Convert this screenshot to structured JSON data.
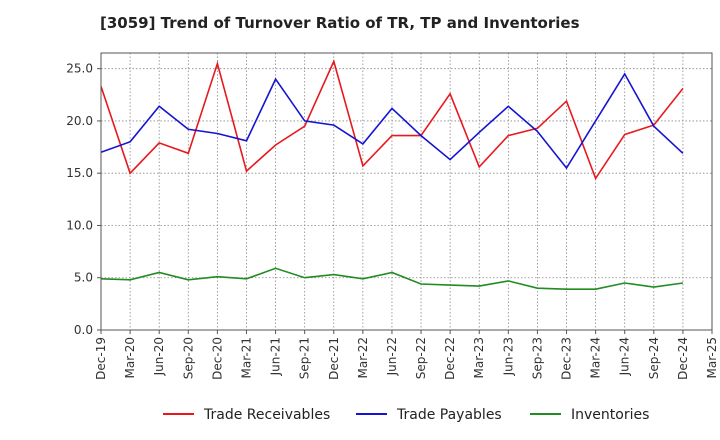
{
  "chart_data": {
    "type": "line",
    "title": "[3059]  Trend of Turnover Ratio of TR, TP and Inventories",
    "xlabel": "",
    "ylabel": "",
    "ylim": [
      0,
      26.5
    ],
    "y_ticks": [
      "0.0",
      "5.0",
      "10.0",
      "15.0",
      "20.0",
      "25.0"
    ],
    "x_ticks": [
      "Dec-19",
      "Mar-20",
      "Jun-20",
      "Sep-20",
      "Dec-20",
      "Mar-21",
      "Jun-21",
      "Sep-21",
      "Dec-21",
      "Mar-22",
      "Jun-22",
      "Sep-22",
      "Dec-22",
      "Mar-23",
      "Jun-23",
      "Sep-23",
      "Dec-23",
      "Mar-24",
      "Jun-24",
      "Sep-24",
      "Dec-24",
      "Mar-25"
    ],
    "grid": true,
    "legend_position": "bottom",
    "series": [
      {
        "name": "Trade Receivables",
        "color": "#e8191e",
        "values": [
          23.3,
          15.0,
          17.9,
          16.9,
          25.5,
          15.2,
          17.7,
          19.5,
          25.7,
          15.7,
          18.6,
          18.6,
          22.6,
          15.6,
          18.6,
          19.3,
          21.9,
          14.5,
          18.7,
          19.6,
          23.1
        ]
      },
      {
        "name": "Trade Payables",
        "color": "#1414d2",
        "values": [
          17.0,
          18.0,
          21.4,
          19.2,
          18.8,
          18.1,
          24.0,
          20.0,
          19.6,
          17.8,
          21.2,
          18.6,
          16.3,
          18.9,
          21.4,
          19.0,
          15.5,
          20.0,
          24.5,
          19.5,
          16.9
        ]
      },
      {
        "name": "Inventories",
        "color": "#228b22",
        "values": [
          4.9,
          4.8,
          5.5,
          4.8,
          5.1,
          4.9,
          5.9,
          5.0,
          5.3,
          4.9,
          5.5,
          4.4,
          4.3,
          4.2,
          4.7,
          4.0,
          3.9,
          3.9,
          4.5,
          4.1,
          4.5
        ]
      }
    ]
  }
}
